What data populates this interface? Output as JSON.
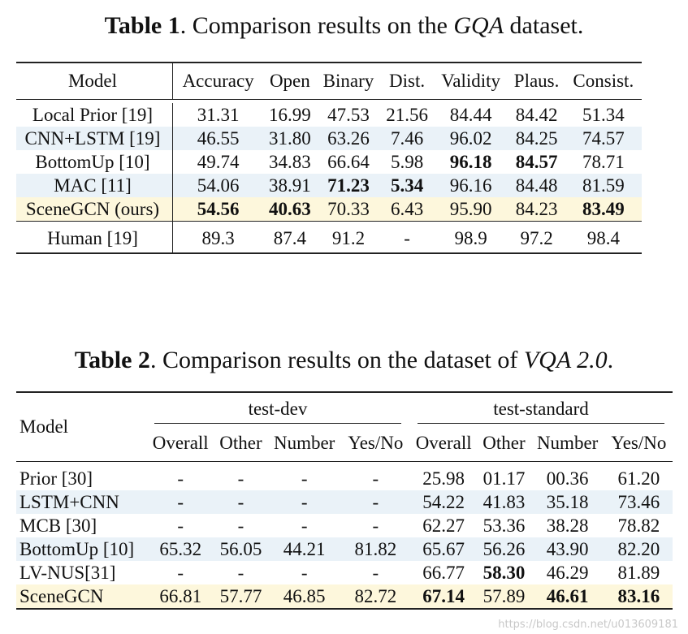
{
  "table1": {
    "caption_label": "Table 1",
    "caption_pre": ". Comparison results on the ",
    "caption_italic": "GQA",
    "caption_post": " dataset.",
    "headers": [
      "Model",
      "Accuracy",
      "Open",
      "Binary",
      "Dist.",
      "Validity",
      "Plaus.",
      "Consist."
    ],
    "rows": [
      {
        "model": "Local Prior [19]",
        "values": [
          "31.31",
          "16.99",
          "47.53",
          "21.56",
          "84.44",
          "84.42",
          "51.34"
        ]
      },
      {
        "model": "CNN+LSTM [19]",
        "values": [
          "46.55",
          "31.80",
          "63.26",
          "7.46",
          "96.02",
          "84.25",
          "74.57"
        ]
      },
      {
        "model": "BottomUp [10]",
        "values": [
          "49.74",
          "34.83",
          "66.64",
          "5.98",
          "96.18",
          "84.57",
          "78.71"
        ]
      },
      {
        "model": "MAC [11]",
        "values": [
          "54.06",
          "38.91",
          "71.23",
          "5.34",
          "96.16",
          "84.48",
          "81.59"
        ]
      },
      {
        "model": "SceneGCN (ours)",
        "values": [
          "54.56",
          "40.63",
          "70.33",
          "6.43",
          "95.90",
          "84.23",
          "83.49"
        ]
      }
    ],
    "human": {
      "model": "Human [19]",
      "values": [
        "89.3",
        "87.4",
        "91.2",
        "-",
        "98.9",
        "97.2",
        "98.4"
      ]
    }
  },
  "table2": {
    "caption_label": "Table 2",
    "caption_pre": ". Comparison results on the dataset of ",
    "caption_italic": "VQA 2.0",
    "caption_post": ".",
    "model_header": "Model",
    "group_dev": "test-dev",
    "group_std": "test-standard",
    "subheaders": [
      "Overall",
      "Other",
      "Number",
      "Yes/No",
      "Overall",
      "Other",
      "Number",
      "Yes/No"
    ],
    "rows": [
      {
        "model": "Prior [30]",
        "values": [
          "-",
          "-",
          "-",
          "-",
          "25.98",
          "01.17",
          "00.36",
          "61.20"
        ]
      },
      {
        "model": "LSTM+CNN",
        "values": [
          "-",
          "-",
          "-",
          "-",
          "54.22",
          "41.83",
          "35.18",
          "73.46"
        ]
      },
      {
        "model": "MCB [30]",
        "values": [
          "-",
          "-",
          "-",
          "-",
          "62.27",
          "53.36",
          "38.28",
          "78.82"
        ]
      },
      {
        "model": "BottomUp [10]",
        "values": [
          "65.32",
          "56.05",
          "44.21",
          "81.82",
          "65.67",
          "56.26",
          "43.90",
          "82.20"
        ]
      },
      {
        "model": "LV-NUS[31]",
        "values": [
          "-",
          "-",
          "-",
          "-",
          "66.77",
          "58.30",
          "46.29",
          "81.89"
        ]
      },
      {
        "model": "SceneGCN",
        "values": [
          "66.81",
          "57.77",
          "46.85",
          "82.72",
          "67.14",
          "57.89",
          "46.61",
          "83.16"
        ]
      }
    ]
  },
  "watermark": "https://blog.csdn.net/u013609181"
}
